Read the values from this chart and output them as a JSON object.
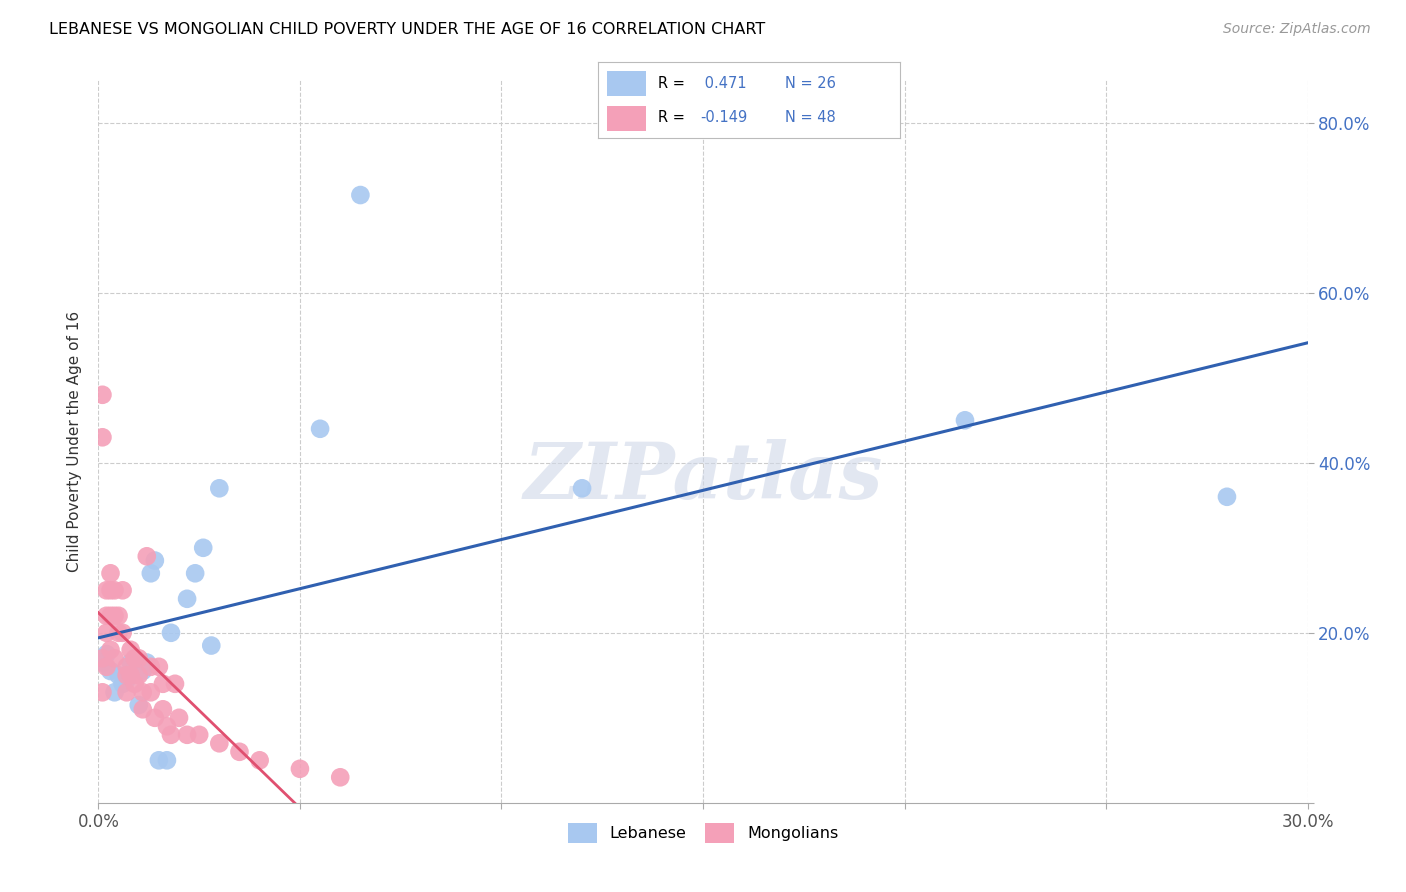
{
  "title": "LEBANESE VS MONGOLIAN CHILD POVERTY UNDER THE AGE OF 16 CORRELATION CHART",
  "source": "Source: ZipAtlas.com",
  "ylabel": "Child Poverty Under the Age of 16",
  "xlim": [
    0.0,
    0.3
  ],
  "ylim": [
    0.0,
    0.85
  ],
  "xticks": [
    0.0,
    0.05,
    0.1,
    0.15,
    0.2,
    0.25,
    0.3
  ],
  "yticks": [
    0.0,
    0.2,
    0.4,
    0.6,
    0.8
  ],
  "ytick_labels": [
    "",
    "20.0%",
    "40.0%",
    "60.0%",
    "80.0%"
  ],
  "xtick_labels_show": [
    "0.0%",
    "",
    "",
    "",
    "",
    "",
    "30.0%"
  ],
  "lebanese_color": "#A8C8F0",
  "mongolian_color": "#F4A0B8",
  "trend_lebanese_color": "#3060B0",
  "trend_mongolian_color": "#E05070",
  "watermark": "ZIPatlas",
  "lebanese_x": [
    0.001,
    0.002,
    0.003,
    0.004,
    0.005,
    0.006,
    0.007,
    0.008,
    0.01,
    0.011,
    0.012,
    0.013,
    0.014,
    0.015,
    0.017,
    0.018,
    0.022,
    0.024,
    0.026,
    0.028,
    0.03,
    0.055,
    0.065,
    0.12,
    0.215,
    0.28
  ],
  "lebanese_y": [
    0.165,
    0.175,
    0.155,
    0.13,
    0.15,
    0.14,
    0.145,
    0.165,
    0.115,
    0.155,
    0.165,
    0.27,
    0.285,
    0.05,
    0.05,
    0.2,
    0.24,
    0.27,
    0.3,
    0.185,
    0.37,
    0.44,
    0.715,
    0.37,
    0.45,
    0.36
  ],
  "mongolian_x": [
    0.001,
    0.001,
    0.001,
    0.001,
    0.002,
    0.002,
    0.002,
    0.002,
    0.003,
    0.003,
    0.003,
    0.003,
    0.004,
    0.004,
    0.004,
    0.005,
    0.005,
    0.006,
    0.006,
    0.007,
    0.007,
    0.007,
    0.008,
    0.008,
    0.009,
    0.009,
    0.01,
    0.01,
    0.011,
    0.011,
    0.012,
    0.013,
    0.013,
    0.014,
    0.015,
    0.016,
    0.016,
    0.017,
    0.018,
    0.019,
    0.02,
    0.022,
    0.025,
    0.03,
    0.035,
    0.04,
    0.05,
    0.06
  ],
  "mongolian_y": [
    0.48,
    0.43,
    0.17,
    0.13,
    0.25,
    0.22,
    0.2,
    0.16,
    0.27,
    0.25,
    0.22,
    0.18,
    0.25,
    0.22,
    0.17,
    0.22,
    0.2,
    0.25,
    0.2,
    0.16,
    0.15,
    0.13,
    0.18,
    0.15,
    0.17,
    0.14,
    0.17,
    0.15,
    0.13,
    0.11,
    0.29,
    0.16,
    0.13,
    0.1,
    0.16,
    0.14,
    0.11,
    0.09,
    0.08,
    0.14,
    0.1,
    0.08,
    0.08,
    0.07,
    0.06,
    0.05,
    0.04,
    0.03
  ],
  "trend_leb_x0": 0.0,
  "trend_leb_x1": 0.3,
  "trend_mon_solid_x0": 0.0,
  "trend_mon_solid_x1": 0.06,
  "trend_mon_dash_x0": 0.06,
  "trend_mon_dash_x1": 0.195
}
